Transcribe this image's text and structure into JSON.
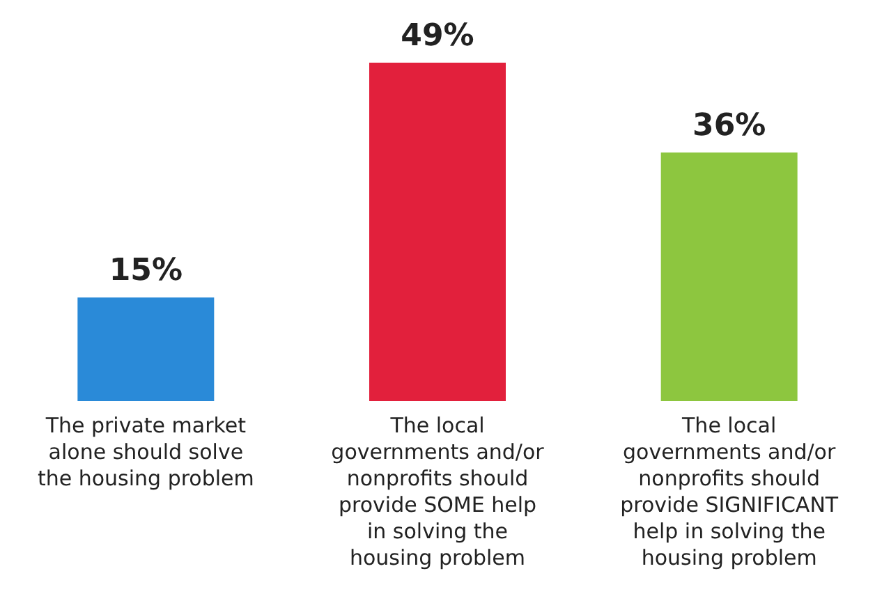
{
  "chart_data": {
    "type": "bar",
    "categories": [
      "The private market\nalone should solve\nthe housing problem",
      "The local\ngovernments and/or\nnonprofits should\nprovide SOME help\nin solving the\nhousing problem",
      "The local\ngovernments and/or\nnonprofits should\nprovide SIGNIFICANT\nhelp in solving the\nhousing problem"
    ],
    "values": [
      15,
      49,
      36
    ],
    "colors": [
      "#2a8ad8",
      "#e2203c",
      "#8dc63f"
    ],
    "value_labels": [
      "15%",
      "49%",
      "36%"
    ]
  }
}
